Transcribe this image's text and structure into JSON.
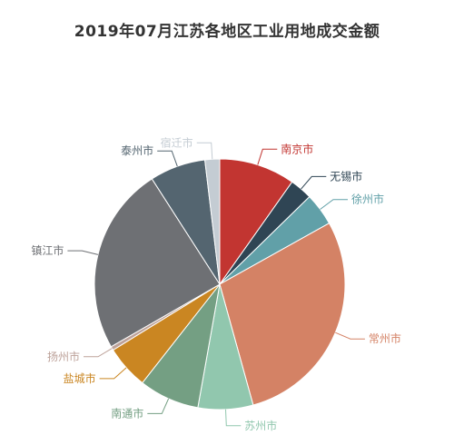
{
  "chart_data": {
    "type": "pie",
    "title": "2019年07月江苏各地区工业用地成交金额",
    "slices": [
      {
        "name": "南京市",
        "value": 9.8,
        "color": "#c23531"
      },
      {
        "name": "无锡市",
        "value": 2.9,
        "color": "#2f4554"
      },
      {
        "name": "徐州市",
        "value": 4.2,
        "color": "#61a0a8"
      },
      {
        "name": "常州市",
        "value": 28.8,
        "color": "#d48265"
      },
      {
        "name": "苏州市",
        "value": 7.1,
        "color": "#91c7ae"
      },
      {
        "name": "南通市",
        "value": 7.8,
        "color": "#749f83"
      },
      {
        "name": "盐城市",
        "value": 5.6,
        "color": "#ca8622"
      },
      {
        "name": "扬州市",
        "value": 0.5,
        "color": "#bda29a"
      },
      {
        "name": "镇江市",
        "value": 24.2,
        "color": "#6e7074"
      },
      {
        "name": "泰州市",
        "value": 7.2,
        "color": "#546570"
      },
      {
        "name": "宿迁市",
        "value": 1.9,
        "color": "#c4ccd3"
      }
    ]
  }
}
